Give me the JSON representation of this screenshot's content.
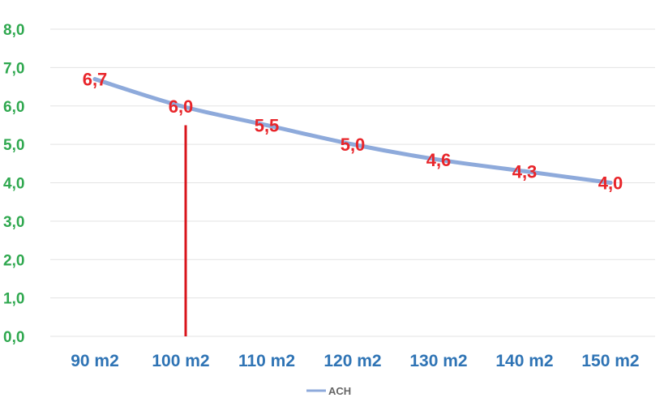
{
  "chart_data": {
    "type": "line",
    "categories": [
      "90 m2",
      "100 m2",
      "110 m2",
      "120 m2",
      "130 m2",
      "140 m2",
      "150 m2"
    ],
    "series": [
      {
        "name": "ACH",
        "values": [
          6.7,
          6.0,
          5.5,
          5.0,
          4.6,
          4.3,
          4.0
        ],
        "labels": [
          "6,7",
          "6,0",
          "5,5",
          "5,0",
          "4,6",
          "4,3",
          "4,0"
        ]
      }
    ],
    "ylim": [
      0,
      8
    ],
    "yticks": [
      0,
      1,
      2,
      3,
      4,
      5,
      6,
      7,
      8
    ],
    "ytick_labels": [
      "0,0",
      "1,0",
      "2,0",
      "3,0",
      "4,0",
      "5,0",
      "6,0",
      "7,0",
      "8,0"
    ],
    "grid": true,
    "legend": "bottom",
    "marker_line": {
      "category": "100 m2",
      "from": 0,
      "to": 5.5
    },
    "colors": {
      "line": "#8eaadb",
      "data_label": "#e8252a",
      "ytick": "#2fa84f",
      "xtick": "#2f74b5",
      "marker_line": "#d9141b",
      "grid": "#e3e3e3",
      "legend_text": "#666666"
    }
  }
}
